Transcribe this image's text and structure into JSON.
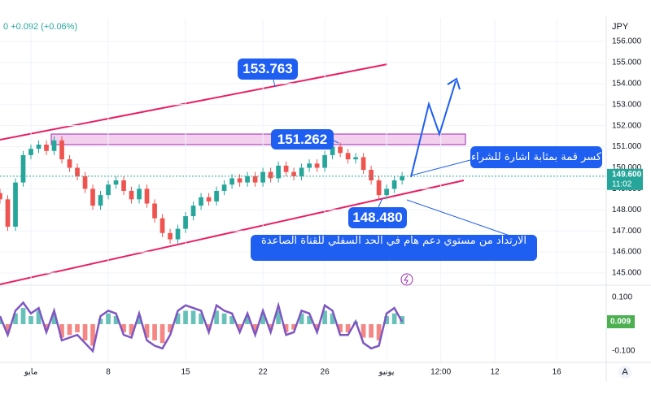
{
  "chart_data": {
    "type": "candlestick",
    "header": "0  +0.092 (+0.06%)",
    "currency": "JPY",
    "x": [
      -2,
      -1.5,
      -1,
      -0.5,
      0,
      0.5,
      1,
      1.5,
      2,
      2.5,
      3,
      3.5,
      4,
      4.5,
      5,
      5.5,
      6,
      6.5,
      7,
      7.5,
      8,
      8.5,
      9,
      9.5,
      10,
      10.5,
      11,
      11.5,
      12,
      12.5,
      13,
      13.5,
      14,
      14.5,
      15,
      15.5,
      16,
      16.5,
      17,
      17.5,
      18,
      18.5,
      19,
      19.5,
      20,
      20.5,
      21,
      21.5,
      22,
      22.5,
      23,
      23.5,
      24
    ],
    "open": [
      148.8,
      148.5,
      147.2,
      149.3,
      150.6,
      150.9,
      151.1,
      150.8,
      151.3,
      150.4,
      150.0,
      149.6,
      149.0,
      148.2,
      148.7,
      149.2,
      149.4,
      148.9,
      148.5,
      149.0,
      148.3,
      147.6,
      146.9,
      146.6,
      147.1,
      147.7,
      148.2,
      148.6,
      148.4,
      148.9,
      149.2,
      149.5,
      149.3,
      149.6,
      149.3,
      149.8,
      149.5,
      150.1,
      149.8,
      149.6,
      150.0,
      150.2,
      150.0,
      150.6,
      151.0,
      150.7,
      150.4,
      150.5,
      149.9,
      149.4,
      148.7,
      149.0,
      149.4
    ],
    "high": [
      149.0,
      148.7,
      149.5,
      150.8,
      151.1,
      151.3,
      151.3,
      151.5,
      151.5,
      150.6,
      150.2,
      149.8,
      149.2,
      148.9,
      149.4,
      149.6,
      149.6,
      149.1,
      149.2,
      149.2,
      148.5,
      147.8,
      147.1,
      147.3,
      147.9,
      148.4,
      148.8,
      148.8,
      149.1,
      149.4,
      149.7,
      149.7,
      149.8,
      149.8,
      150.0,
      150.0,
      150.3,
      150.3,
      150.0,
      150.2,
      150.4,
      150.4,
      150.8,
      151.2,
      151.2,
      150.9,
      150.7,
      150.7,
      150.1,
      149.6,
      149.2,
      149.6,
      149.8
    ],
    "low": [
      148.3,
      147.0,
      147.0,
      149.1,
      150.4,
      150.7,
      150.6,
      150.6,
      150.2,
      149.8,
      149.4,
      148.8,
      148.0,
      148.0,
      148.5,
      149.0,
      148.7,
      148.3,
      148.3,
      148.1,
      147.4,
      146.7,
      146.4,
      146.4,
      146.9,
      147.5,
      148.0,
      148.2,
      148.2,
      148.7,
      149.0,
      149.1,
      149.1,
      149.1,
      149.1,
      149.3,
      149.3,
      149.6,
      149.4,
      149.4,
      149.8,
      149.8,
      149.8,
      150.4,
      150.5,
      150.2,
      150.2,
      149.7,
      149.2,
      148.5,
      148.5,
      148.8,
      149.2
    ],
    "close": [
      148.5,
      147.2,
      149.3,
      150.6,
      150.9,
      151.1,
      150.8,
      151.3,
      150.4,
      150.0,
      149.6,
      149.0,
      148.2,
      148.7,
      149.2,
      149.4,
      148.9,
      148.5,
      149.0,
      148.3,
      147.6,
      146.9,
      146.6,
      147.1,
      147.7,
      148.2,
      148.6,
      148.4,
      148.9,
      149.2,
      149.5,
      149.3,
      149.6,
      149.3,
      149.8,
      149.5,
      150.1,
      149.8,
      149.6,
      150.0,
      150.2,
      150.0,
      150.6,
      151.0,
      150.7,
      150.4,
      150.5,
      149.9,
      149.4,
      148.7,
      149.0,
      149.4,
      149.6
    ],
    "up_color": "#26a69a",
    "down_color": "#ef5350",
    "xlim": [
      -2,
      37.2
    ],
    "xticks": [
      {
        "value": 0,
        "label": "مايو"
      },
      {
        "value": 5,
        "label": "8"
      },
      {
        "value": 10,
        "label": "15"
      },
      {
        "value": 15,
        "label": "22"
      },
      {
        "value": 19,
        "label": "26"
      },
      {
        "value": 23,
        "label": "يونيو"
      },
      {
        "value": 26.5,
        "label": "12:00"
      },
      {
        "value": 30,
        "label": "12"
      },
      {
        "value": 34,
        "label": "16"
      }
    ],
    "ylim": [
      144.46,
      157.12
    ],
    "yticks": [
      {
        "value": 145,
        "label": "145.000"
      },
      {
        "value": 146,
        "label": "146.000"
      },
      {
        "value": 147,
        "label": "147.000"
      },
      {
        "value": 148,
        "label": "148.000"
      },
      {
        "value": 149,
        "label": "149.000"
      },
      {
        "value": 150,
        "label": "150.000"
      },
      {
        "value": 151,
        "label": "151.000"
      },
      {
        "value": 152,
        "label": "152.000"
      },
      {
        "value": 153,
        "label": "153.000"
      },
      {
        "value": 154,
        "label": "154.000"
      },
      {
        "value": 155,
        "label": "155.000"
      },
      {
        "value": 156,
        "label": "156.000"
      }
    ],
    "last_price": {
      "value": 149.6,
      "label": "149.600"
    },
    "last_time": "11:02",
    "grid": true,
    "oscillator": {
      "histogram": [
        0.02,
        -0.03,
        0.04,
        0.06,
        0.03,
        0.05,
        -0.02,
        0.04,
        -0.05,
        -0.04,
        -0.03,
        -0.06,
        -0.08,
        0.02,
        0.04,
        0.03,
        -0.03,
        -0.04,
        0.03,
        -0.05,
        -0.06,
        -0.07,
        -0.03,
        0.04,
        0.05,
        0.05,
        0.04,
        -0.02,
        0.05,
        0.04,
        0.03,
        -0.02,
        0.03,
        -0.03,
        0.04,
        -0.02,
        0.05,
        -0.03,
        -0.02,
        0.04,
        0.03,
        -0.02,
        0.05,
        0.04,
        -0.03,
        -0.03,
        0.01,
        -0.05,
        -0.05,
        -0.06,
        0.03,
        0.04,
        0.03
      ],
      "line": [
        0.03,
        -0.04,
        0.05,
        0.08,
        0.04,
        0.06,
        -0.03,
        0.05,
        -0.06,
        -0.05,
        -0.04,
        -0.07,
        -0.1,
        0.03,
        0.05,
        0.04,
        -0.04,
        -0.05,
        0.04,
        -0.06,
        -0.08,
        -0.09,
        -0.04,
        0.05,
        0.07,
        0.06,
        0.05,
        -0.03,
        0.07,
        0.05,
        0.04,
        -0.03,
        0.04,
        -0.04,
        0.05,
        -0.03,
        0.07,
        -0.04,
        -0.03,
        0.05,
        0.04,
        -0.03,
        0.07,
        0.05,
        -0.04,
        -0.04,
        0.01,
        -0.07,
        -0.09,
        -0.08,
        0.04,
        0.06,
        0.009
      ],
      "line_color": "#7e57c2",
      "ylim": [
        -0.139,
        0.142
      ],
      "yticks": [
        {
          "value": 0.1,
          "label": "0.100"
        },
        {
          "value": -0.1,
          "label": "-0.100"
        }
      ],
      "last": 0.009
    },
    "annotations": {
      "upper": 153.763,
      "top": 151.262,
      "lower": {
        "value": 148.48,
        "label": "148.480"
      },
      "breakout": "كسر قمة بمثابة اشارة للشراء",
      "bounce": "الارتداد من مستوي دعم هام في الحد السفلي للقناة الصاعدة"
    }
  }
}
